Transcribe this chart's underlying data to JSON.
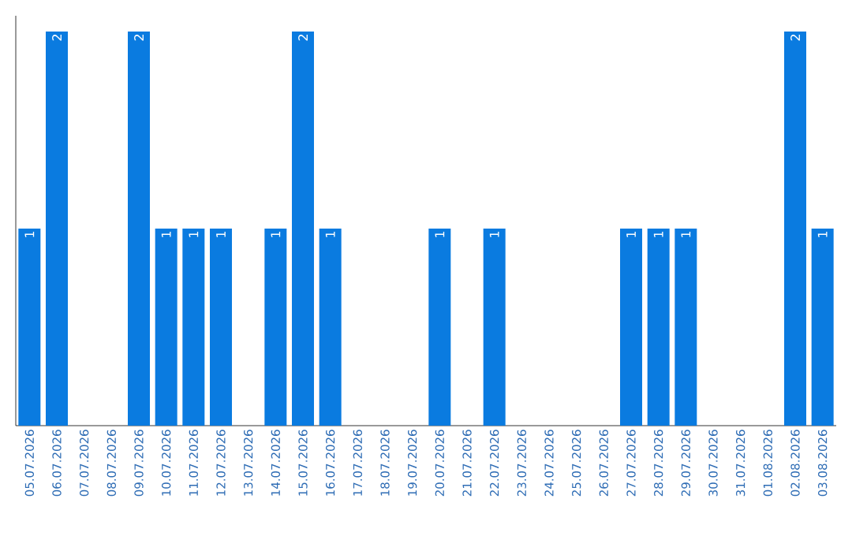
{
  "chart_data": {
    "type": "bar",
    "categories": [
      "05.07.2026",
      "06.07.2026",
      "07.07.2026",
      "08.07.2026",
      "09.07.2026",
      "10.07.2026",
      "11.07.2026",
      "12.07.2026",
      "13.07.2026",
      "14.07.2026",
      "15.07.2026",
      "16.07.2026",
      "17.07.2026",
      "18.07.2026",
      "19.07.2026",
      "20.07.2026",
      "21.07.2026",
      "22.07.2026",
      "23.07.2026",
      "24.07.2026",
      "25.07.2026",
      "26.07.2026",
      "27.07.2026",
      "28.07.2026",
      "29.07.2026",
      "30.07.2026",
      "31.07.2026",
      "01.08.2026",
      "02.08.2026",
      "03.08.2026"
    ],
    "values": [
      1,
      2,
      0,
      0,
      2,
      1,
      1,
      1,
      0,
      1,
      2,
      1,
      0,
      0,
      0,
      1,
      0,
      1,
      0,
      0,
      0,
      0,
      1,
      1,
      1,
      0,
      0,
      0,
      2,
      1
    ],
    "value_labels": [
      "1",
      "2",
      null,
      null,
      "2",
      "1",
      "1",
      "1",
      null,
      "1",
      "2",
      "1",
      null,
      null,
      null,
      "1",
      null,
      "1",
      null,
      null,
      null,
      null,
      "1",
      "1",
      "1",
      null,
      null,
      null,
      "2",
      "1"
    ],
    "color": "#0a7be0",
    "ylim": [
      0,
      2.08
    ],
    "tick_labels": "x"
  }
}
